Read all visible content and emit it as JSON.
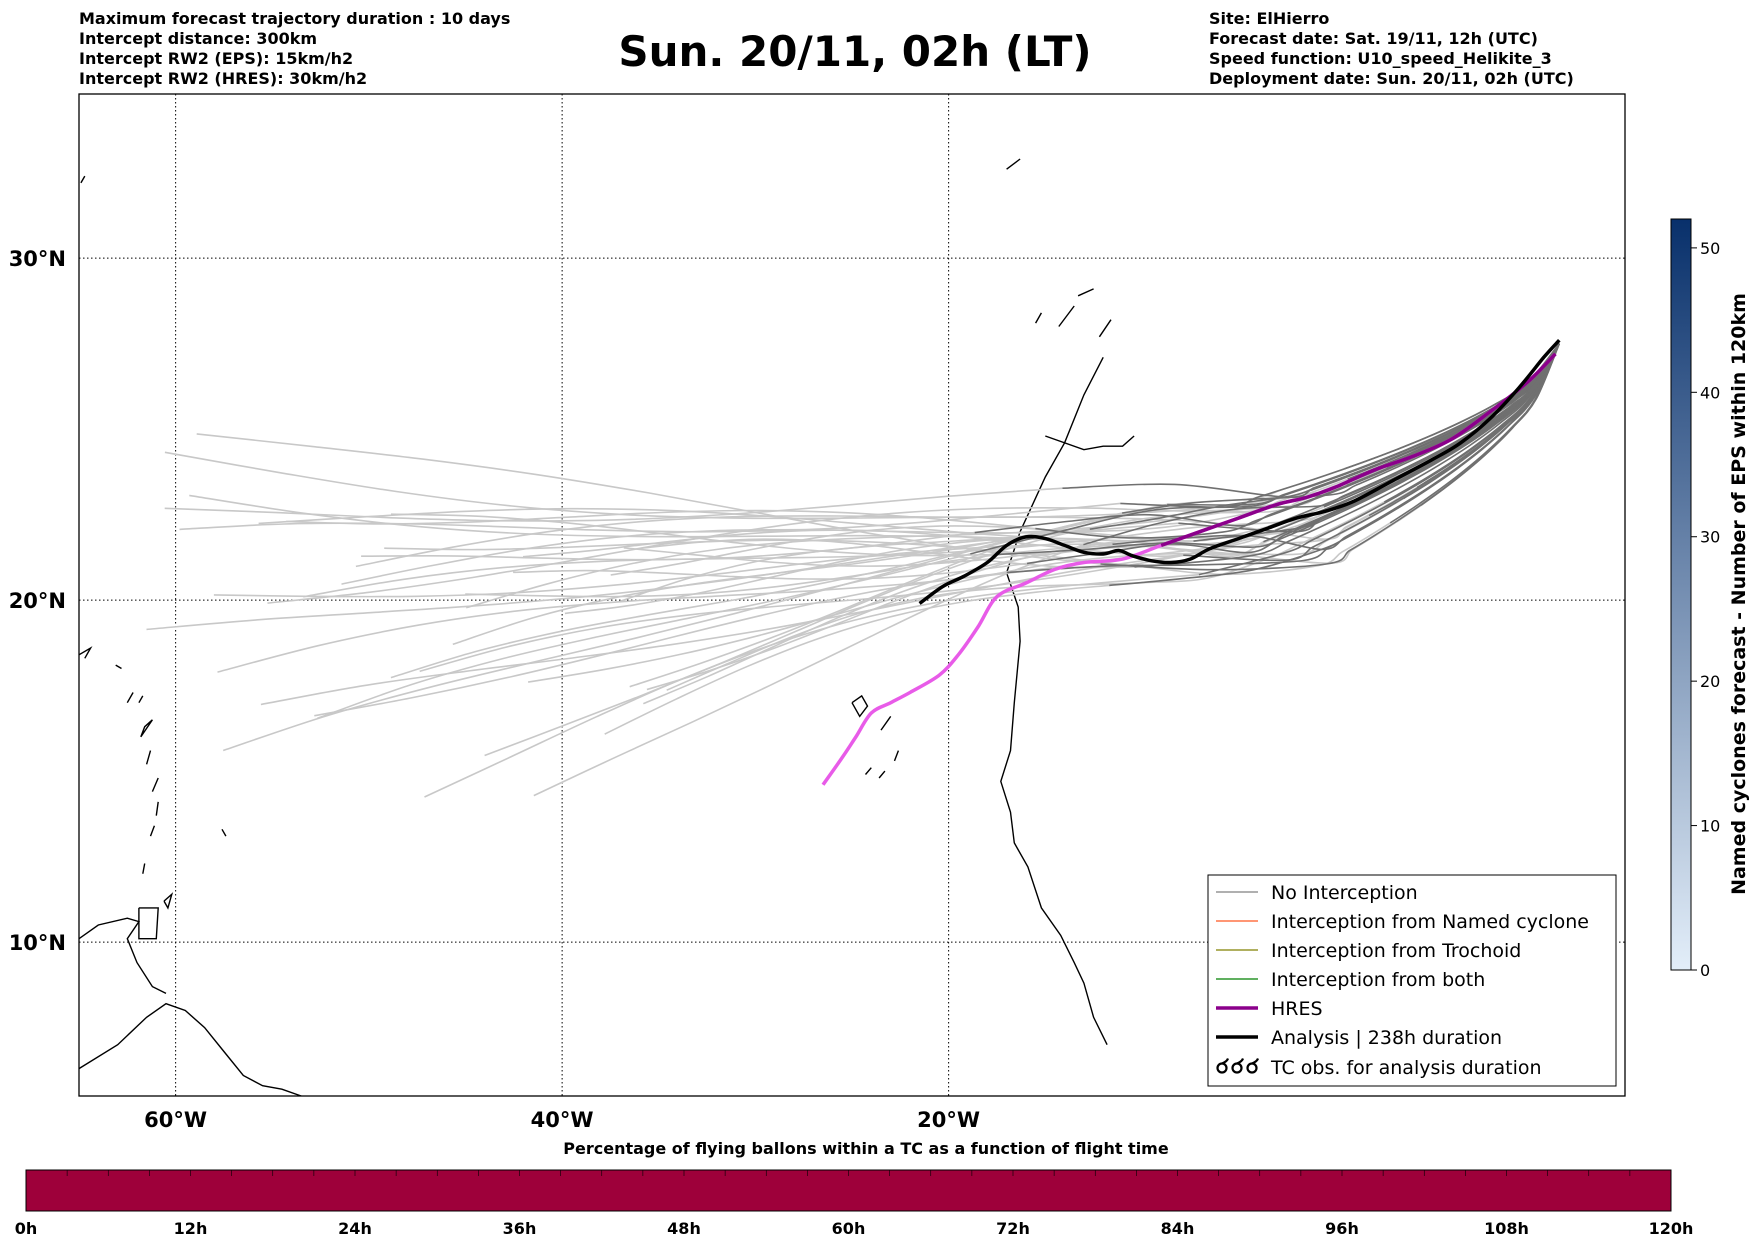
{
  "header": {
    "left_lines": [
      "Maximum forecast trajectory duration : 10 days",
      "Intercept distance: 300km",
      "Intercept RW2 (EPS):  15km/h2",
      "Intercept RW2 (HRES): 30km/h2"
    ],
    "title": "Sun. 20/11, 02h (LT)",
    "right_lines": [
      "Site: ElHierro",
      "Forecast date: Sat. 19/11, 12h (UTC)",
      "Speed function: U10_speed_Helikite_3",
      "Deployment date: Sun. 20/11, 02h (UTC)"
    ]
  },
  "map": {
    "lon_range": [
      -65,
      15
    ],
    "lat_range": [
      5.5,
      34.8
    ],
    "lon_ticks": [
      {
        "value": -60,
        "label": "60°W"
      },
      {
        "value": -40,
        "label": "40°W"
      },
      {
        "value": -20,
        "label": "20°W"
      }
    ],
    "lat_ticks": [
      {
        "value": 30,
        "label": "30°N"
      },
      {
        "value": 20,
        "label": "20°N"
      },
      {
        "value": 10,
        "label": "10°N"
      }
    ],
    "grid": true
  },
  "legend": {
    "placement": "bottom-right",
    "entries": [
      {
        "label": "No Interception",
        "color": "#808080",
        "style": "thin"
      },
      {
        "label": "Interception from Named cyclone",
        "color": "#ff5722",
        "style": "thin"
      },
      {
        "label": "Interception from Trochoid",
        "color": "#808000",
        "style": "thin"
      },
      {
        "label": "Interception from both",
        "color": "#008000",
        "style": "thin"
      },
      {
        "label": "HRES",
        "color": "#8b008b",
        "style": "thick"
      },
      {
        "label": "Analysis | 238h duration",
        "color": "#000000",
        "style": "thick"
      },
      {
        "label": "TC obs. for analysis duration",
        "color": "#000000",
        "style": "symbol"
      }
    ]
  },
  "colorbar_right": {
    "label": "Named cyclones forecast - Number of EPS within 120km",
    "min": 0,
    "max": 52,
    "ticks": [
      0,
      10,
      20,
      30,
      40,
      50
    ],
    "color_low": "#e3eef9",
    "color_high": "#08306b"
  },
  "colorbar_bottom": {
    "title": "Percentage of flying ballons within a TC as a function of flight time",
    "ticks": [
      "0h",
      "12h",
      "24h",
      "36h",
      "48h",
      "60h",
      "72h",
      "84h",
      "96h",
      "108h",
      "120h"
    ],
    "fill_color": "#9e003a"
  },
  "tracks": {
    "hres": [
      [
        -26.5,
        14.6
      ],
      [
        -25.5,
        15.4
      ],
      [
        -24.8,
        16.0
      ],
      [
        -24.0,
        16.7
      ],
      [
        -23.0,
        17.0
      ],
      [
        -22.0,
        17.3
      ],
      [
        -20.5,
        17.8
      ],
      [
        -19.5,
        18.4
      ],
      [
        -18.5,
        19.2
      ],
      [
        -17.5,
        20.1
      ],
      [
        -16.0,
        20.5
      ],
      [
        -14.5,
        20.9
      ],
      [
        -13.0,
        21.1
      ],
      [
        -11.0,
        21.2
      ],
      [
        -9.0,
        21.6
      ],
      [
        -7.0,
        22.0
      ],
      [
        -5.0,
        22.4
      ],
      [
        -3.0,
        22.8
      ],
      [
        -1.5,
        23.0
      ],
      [
        0.0,
        23.3
      ],
      [
        2.0,
        23.8
      ],
      [
        4.0,
        24.2
      ],
      [
        6.0,
        24.7
      ],
      [
        8.0,
        25.5
      ],
      [
        10.0,
        26.4
      ],
      [
        11.4,
        27.2
      ]
    ],
    "analysis": [
      [
        -21.5,
        19.9
      ],
      [
        -20.3,
        20.4
      ],
      [
        -19.2,
        20.7
      ],
      [
        -18.0,
        21.1
      ],
      [
        -17.0,
        21.6
      ],
      [
        -16.0,
        21.85
      ],
      [
        -15.0,
        21.8
      ],
      [
        -14.0,
        21.6
      ],
      [
        -13.0,
        21.4
      ],
      [
        -12.0,
        21.35
      ],
      [
        -11.2,
        21.45
      ],
      [
        -10.5,
        21.3
      ],
      [
        -9.5,
        21.15
      ],
      [
        -8.5,
        21.1
      ],
      [
        -7.5,
        21.2
      ],
      [
        -6.5,
        21.5
      ],
      [
        -5.0,
        21.8
      ],
      [
        -3.5,
        22.1
      ],
      [
        -2.0,
        22.4
      ],
      [
        -0.5,
        22.6
      ],
      [
        1.0,
        22.9
      ],
      [
        3.0,
        23.5
      ],
      [
        5.0,
        24.1
      ],
      [
        6.5,
        24.6
      ],
      [
        8.0,
        25.3
      ],
      [
        9.5,
        26.2
      ],
      [
        10.8,
        27.1
      ],
      [
        11.6,
        27.6
      ]
    ]
  }
}
